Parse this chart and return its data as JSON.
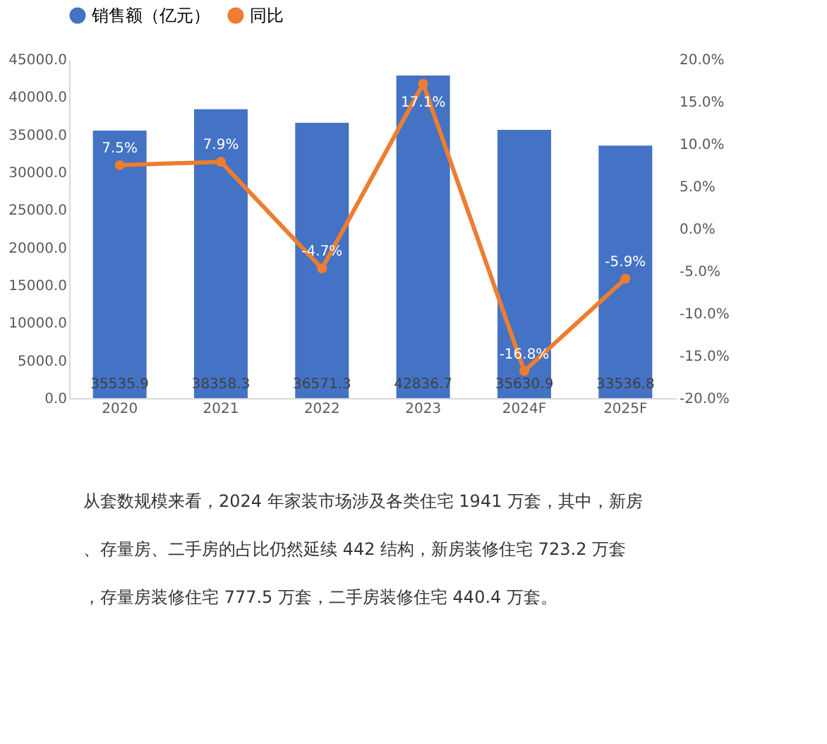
{
  "chart_data": {
    "type": "bar",
    "categories": [
      "2020",
      "2021",
      "2022",
      "2023",
      "2024F",
      "2025F"
    ],
    "series": [
      {
        "name": "销售额（亿元）",
        "color": "#4472c4",
        "values": [
          35535.9,
          38358.3,
          36571.3,
          42836.7,
          35630.9,
          33536.8
        ]
      },
      {
        "name": "同比",
        "type": "line",
        "axis": "y2",
        "color": "#ed7d31",
        "values": [
          7.5,
          7.9,
          -4.7,
          17.1,
          -16.8,
          -5.9
        ],
        "value_labels": [
          "7.5%",
          "7.9%",
          "-4.7%",
          "17.1%",
          "-16.8%",
          "-5.9%"
        ]
      }
    ],
    "ylim": [
      0,
      45000
    ],
    "yticks": [
      {
        "value": 0,
        "label": "0.0"
      },
      {
        "value": 5000,
        "label": "5000.0"
      },
      {
        "value": 10000,
        "label": "10000.0"
      },
      {
        "value": 15000,
        "label": "15000.0"
      },
      {
        "value": 20000,
        "label": "20000.0"
      },
      {
        "value": 25000,
        "label": "25000.0"
      },
      {
        "value": 30000,
        "label": "30000.0"
      },
      {
        "value": 35000,
        "label": "35000.0"
      },
      {
        "value": 40000,
        "label": "40000.0"
      },
      {
        "value": 45000,
        "label": "45000.0"
      }
    ],
    "y2lim": [
      -20,
      20
    ],
    "y2ticks": [
      {
        "value": -20,
        "label": "-20.0%"
      },
      {
        "value": -15,
        "label": "-15.0%"
      },
      {
        "value": -10,
        "label": "-10.0%"
      },
      {
        "value": -5,
        "label": "-5.0%"
      },
      {
        "value": 0,
        "label": "0.0%"
      },
      {
        "value": 5,
        "label": "5.0%"
      },
      {
        "value": 10,
        "label": "10.0%"
      },
      {
        "value": 15,
        "label": "15.0%"
      },
      {
        "value": 20,
        "label": "20.0%"
      }
    ],
    "data_labels": true,
    "grid": false,
    "legend": "top",
    "marker": "circle",
    "annotations": [
      "从套数规模来看，2024 年家装市场涉及各类住宅 1941 万套，其中，新房、存量房、二手房的占比仍然延续 442 结构，新房装修住宅 723.2 万套，存量房装修住宅 777.5 万套，二手房装修住宅 440.4 万套。"
    ]
  }
}
